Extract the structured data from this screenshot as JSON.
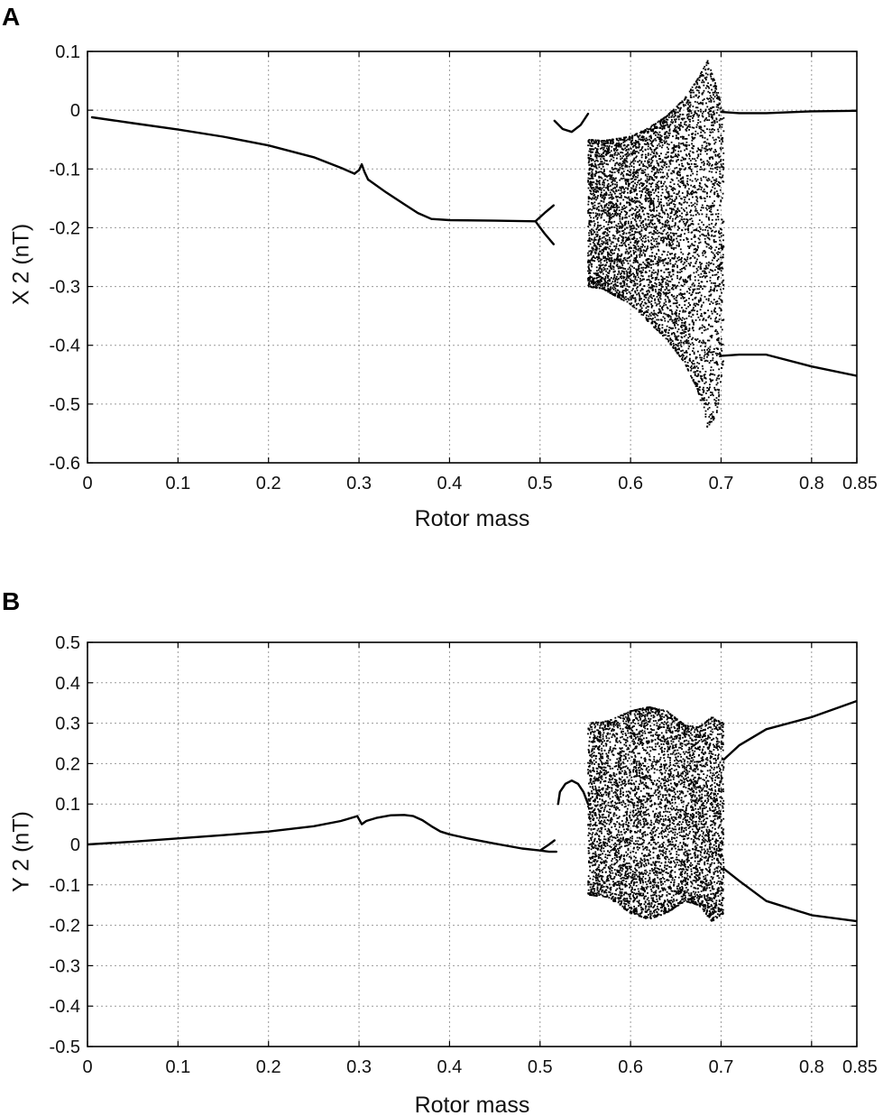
{
  "chart_data": [
    {
      "panel_label": "A",
      "type": "scatter",
      "xlabel": "Rotor mass",
      "ylabel": "X 2 (nT)",
      "xlim": [
        0,
        0.85
      ],
      "ylim": [
        -0.6,
        0.1
      ],
      "xticks": [
        0,
        0.1,
        0.2,
        0.3,
        0.4,
        0.5,
        0.6,
        0.7,
        0.8,
        0.85
      ],
      "xtick_labels": [
        "0",
        "0.1",
        "0.2",
        "0.3",
        "0.4",
        "0.5",
        "0.6",
        "0.7",
        "0.8",
        "0.85"
      ],
      "yticks": [
        0.1,
        0,
        -0.1,
        -0.2,
        -0.3,
        -0.4,
        -0.5,
        -0.6
      ],
      "ytick_labels": [
        "0.1",
        "0",
        "-0.1",
        "-0.2",
        "-0.3",
        "-0.4",
        "-0.5",
        "-0.6"
      ],
      "grid": true,
      "series": [
        {
          "kind": "line",
          "x": [
            0.005,
            0.05,
            0.1,
            0.15,
            0.2,
            0.25,
            0.28,
            0.295
          ],
          "y": [
            -0.012,
            -0.022,
            -0.033,
            -0.045,
            -0.06,
            -0.08,
            -0.098,
            -0.108
          ]
        },
        {
          "kind": "line",
          "x": [
            0.295,
            0.3,
            0.303,
            0.306,
            0.31
          ],
          "y": [
            -0.108,
            -0.102,
            -0.092,
            -0.105,
            -0.118
          ]
        },
        {
          "kind": "line",
          "x": [
            0.31,
            0.33,
            0.35,
            0.365,
            0.38,
            0.4,
            0.45,
            0.495
          ],
          "y": [
            -0.118,
            -0.14,
            -0.16,
            -0.175,
            -0.185,
            -0.187,
            -0.188,
            -0.189
          ]
        },
        {
          "kind": "line",
          "x": [
            0.495,
            0.505,
            0.515
          ],
          "y": [
            -0.189,
            -0.175,
            -0.162
          ]
        },
        {
          "kind": "line",
          "x": [
            0.495,
            0.505,
            0.515
          ],
          "y": [
            -0.189,
            -0.21,
            -0.228
          ]
        },
        {
          "kind": "line",
          "x": [
            0.516,
            0.525,
            0.535,
            0.545,
            0.553
          ],
          "y": [
            -0.018,
            -0.032,
            -0.037,
            -0.025,
            -0.006
          ]
        },
        {
          "kind": "line",
          "x": [
            0.7,
            0.72,
            0.75,
            0.8,
            0.85
          ],
          "y": [
            -0.003,
            -0.005,
            -0.005,
            -0.002,
            -0.001
          ]
        },
        {
          "kind": "line",
          "x": [
            0.7,
            0.72,
            0.75,
            0.8,
            0.85
          ],
          "y": [
            -0.418,
            -0.416,
            -0.416,
            -0.436,
            -0.452
          ]
        },
        {
          "kind": "scatter_band",
          "description_ref": "chaotic",
          "x": [
            0.553,
            0.57,
            0.6,
            0.62,
            0.64,
            0.66,
            0.675,
            0.685,
            0.695,
            0.703
          ],
          "y_upper": [
            -0.05,
            -0.052,
            -0.045,
            -0.03,
            -0.01,
            0.02,
            0.055,
            0.085,
            0.04,
            -0.005
          ],
          "y_lower": [
            -0.3,
            -0.305,
            -0.33,
            -0.36,
            -0.39,
            -0.43,
            -0.48,
            -0.54,
            -0.52,
            -0.43
          ]
        }
      ]
    },
    {
      "panel_label": "B",
      "type": "scatter",
      "xlabel": "Rotor mass",
      "ylabel": "Y 2 (nT)",
      "xlim": [
        0,
        0.85
      ],
      "ylim": [
        -0.5,
        0.5
      ],
      "xticks": [
        0,
        0.1,
        0.2,
        0.3,
        0.4,
        0.5,
        0.6,
        0.7,
        0.8,
        0.85
      ],
      "xtick_labels": [
        "0",
        "0.1",
        "0.2",
        "0.3",
        "0.4",
        "0.5",
        "0.6",
        "0.7",
        "0.8",
        "0.85"
      ],
      "yticks": [
        0.5,
        0.4,
        0.3,
        0.2,
        0.1,
        0,
        -0.1,
        -0.2,
        -0.3,
        -0.4,
        -0.5
      ],
      "ytick_labels": [
        "0.5",
        "0.4",
        "0.3",
        "0.2",
        "0.1",
        "0",
        "-0.1",
        "-0.2",
        "-0.3",
        "-0.4",
        "-0.5"
      ],
      "grid": true,
      "series": [
        {
          "kind": "line",
          "x": [
            0.0,
            0.05,
            0.1,
            0.15,
            0.2,
            0.25,
            0.28,
            0.298
          ],
          "y": [
            0.0,
            0.007,
            0.015,
            0.023,
            0.032,
            0.045,
            0.058,
            0.07
          ]
        },
        {
          "kind": "line",
          "x": [
            0.298,
            0.303,
            0.308,
            0.32,
            0.335,
            0.35,
            0.36,
            0.37,
            0.38,
            0.39,
            0.4
          ],
          "y": [
            0.07,
            0.05,
            0.058,
            0.066,
            0.072,
            0.073,
            0.07,
            0.06,
            0.045,
            0.032,
            0.025
          ]
        },
        {
          "kind": "line",
          "x": [
            0.4,
            0.42,
            0.45,
            0.48,
            0.5,
            0.51,
            0.518
          ],
          "y": [
            0.025,
            0.015,
            0.002,
            -0.01,
            -0.015,
            -0.018,
            -0.018
          ]
        },
        {
          "kind": "line",
          "x": [
            0.5,
            0.51,
            0.516
          ],
          "y": [
            -0.015,
            0.0,
            0.01
          ]
        },
        {
          "kind": "line",
          "x": [
            0.52,
            0.522,
            0.528,
            0.535,
            0.542,
            0.548,
            0.553
          ],
          "y": [
            0.1,
            0.13,
            0.15,
            0.158,
            0.15,
            0.13,
            0.1
          ]
        },
        {
          "kind": "line",
          "x": [
            0.703,
            0.72,
            0.75,
            0.8,
            0.85
          ],
          "y": [
            0.21,
            0.245,
            0.285,
            0.315,
            0.355
          ]
        },
        {
          "kind": "line",
          "x": [
            0.703,
            0.72,
            0.75,
            0.8,
            0.85
          ],
          "y": [
            -0.06,
            -0.09,
            -0.14,
            -0.175,
            -0.19
          ]
        },
        {
          "kind": "scatter_band",
          "description_ref": "chaotic",
          "x": [
            0.553,
            0.575,
            0.6,
            0.62,
            0.64,
            0.66,
            0.675,
            0.69,
            0.703
          ],
          "y_upper": [
            0.3,
            0.305,
            0.33,
            0.34,
            0.33,
            0.295,
            0.29,
            0.315,
            0.3
          ],
          "y_lower": [
            -0.125,
            -0.13,
            -0.17,
            -0.185,
            -0.17,
            -0.14,
            -0.15,
            -0.19,
            -0.17
          ]
        }
      ]
    }
  ]
}
